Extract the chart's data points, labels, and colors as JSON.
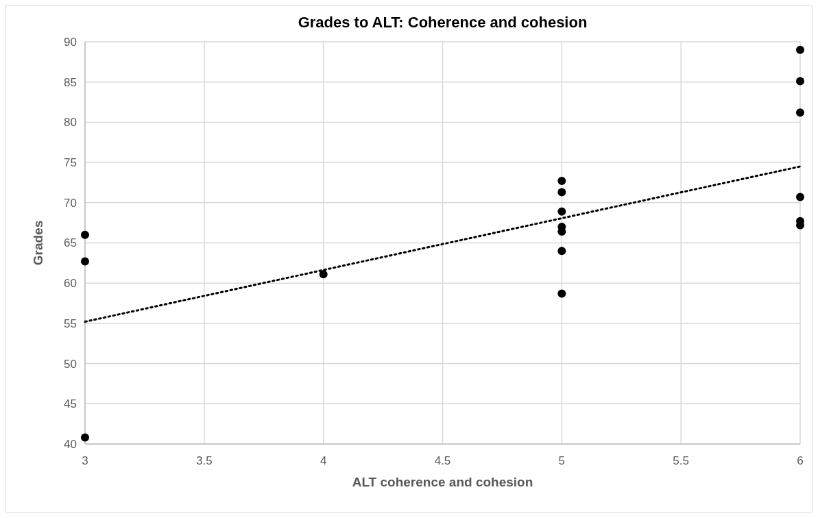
{
  "chart_data": {
    "type": "scatter",
    "title": "Grades to ALT: Coherence and cohesion",
    "xlabel": "ALT coherence and cohesion",
    "ylabel": "Grades",
    "xlim": [
      3,
      6
    ],
    "xticks": [
      3,
      3.5,
      4,
      4.5,
      5,
      5.5,
      6
    ],
    "ylim": [
      40,
      90
    ],
    "yticks": [
      40,
      45,
      50,
      55,
      60,
      65,
      70,
      75,
      80,
      85,
      90
    ],
    "grid": true,
    "marker": "circle",
    "series": [
      {
        "color": "#000000",
        "x": [
          3,
          3,
          3,
          4,
          5,
          5,
          5,
          5,
          5,
          5,
          5,
          6,
          6,
          6,
          6,
          6,
          6
        ],
        "values": [
          66.0,
          62.7,
          40.8,
          61.1,
          72.7,
          71.3,
          68.9,
          67.0,
          66.4,
          64.0,
          58.7,
          89.0,
          85.1,
          81.2,
          70.7,
          67.7,
          67.2
        ]
      },
      {
        "type": "line",
        "color": "#000000",
        "line_style": "dotted",
        "marker": "none",
        "x": [
          3,
          6
        ],
        "values": [
          55.2,
          74.5
        ]
      }
    ]
  }
}
